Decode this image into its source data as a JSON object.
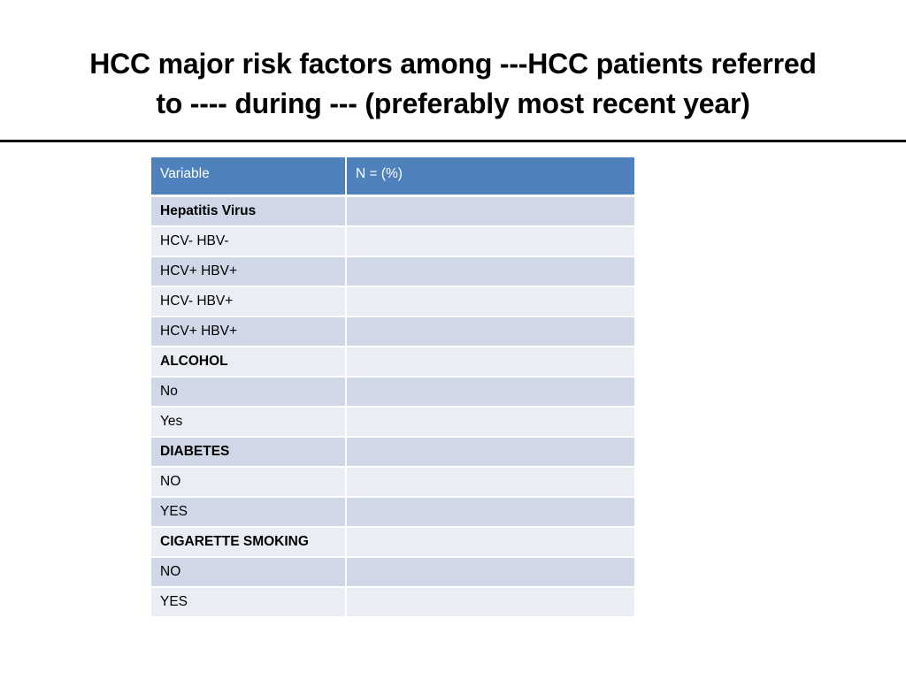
{
  "slide": {
    "title_line1": "HCC major risk factors among ---HCC patients referred",
    "title_line2": "to ---- during --- (preferably most recent year)"
  },
  "table": {
    "headers": [
      "Variable",
      "N =    (%)"
    ],
    "rows": [
      {
        "label": "Hepatitis Virus",
        "value": "",
        "section": true
      },
      {
        "label": "HCV- HBV-",
        "value": ""
      },
      {
        "label": "HCV+ HBV+",
        "value": ""
      },
      {
        "label": "HCV- HBV+",
        "value": ""
      },
      {
        "label": "HCV+ HBV+",
        "value": ""
      },
      {
        "label": "ALCOHOL",
        "value": "",
        "section": true
      },
      {
        "label": "No",
        "value": ""
      },
      {
        "label": "Yes",
        "value": ""
      },
      {
        "label": "DIABETES",
        "value": "",
        "section": true
      },
      {
        "label": "NO",
        "value": ""
      },
      {
        "label": "YES",
        "value": ""
      },
      {
        "label": "CIGARETTE SMOKING",
        "value": "",
        "section": true
      },
      {
        "label": "NO",
        "value": ""
      },
      {
        "label": "YES",
        "value": ""
      }
    ]
  },
  "colors": {
    "header_bg": "#4f81bd",
    "row_band_dark": "#d0d8e8",
    "row_band_light": "#e9edf4"
  }
}
